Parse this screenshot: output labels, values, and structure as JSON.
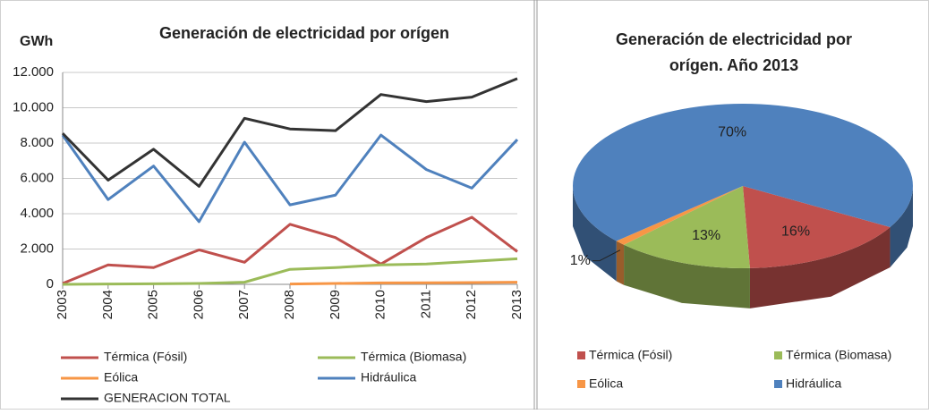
{
  "chart_data": [
    {
      "type": "line",
      "title": "Generación de electricidad por orígen",
      "y_label": "GWh",
      "categories": [
        "2003",
        "2004",
        "2005",
        "2006",
        "2007",
        "2008",
        "2009",
        "2010",
        "2011",
        "2012",
        "2013"
      ],
      "series": [
        {
          "name": "Térmica (Fósil)",
          "color": "#c0504d",
          "values": [
            50,
            1100,
            950,
            1950,
            1250,
            3400,
            2650,
            1150,
            2650,
            3800,
            1850
          ]
        },
        {
          "name": "Térmica (Biomasa)",
          "color": "#9bbb59",
          "values": [
            0,
            20,
            30,
            50,
            120,
            850,
            950,
            1100,
            1150,
            1300,
            1450
          ]
        },
        {
          "name": "Eólica",
          "color": "#f79646",
          "values": [
            null,
            null,
            null,
            null,
            null,
            20,
            50,
            80,
            90,
            100,
            120
          ]
        },
        {
          "name": "Hidráulica",
          "color": "#4f81bd",
          "values": [
            8450,
            4800,
            6700,
            3550,
            8050,
            4500,
            5050,
            8450,
            6500,
            5450,
            8200
          ]
        },
        {
          "name": "GENERACION TOTAL",
          "color": "#333333",
          "values": [
            8550,
            5900,
            7650,
            5550,
            9400,
            8800,
            8700,
            10750,
            10350,
            10600,
            11650
          ]
        }
      ],
      "ylim": [
        0,
        12000
      ],
      "yticks": [
        0,
        {
          "value": 2000,
          "label": "2.000"
        },
        {
          "value": 4000,
          "label": "4.000"
        },
        {
          "value": 6000,
          "label": "6.000"
        },
        {
          "value": 8000,
          "label": "8.000"
        },
        {
          "value": 10000,
          "label": "10.000"
        },
        {
          "value": 12000,
          "label": "12.000"
        }
      ],
      "grid": true,
      "legend": "bottom"
    },
    {
      "type": "pie",
      "title": [
        "Generación de electricidad por",
        "orígen. Año 2013"
      ],
      "categories": [
        "Térmica (Fósil)",
        "Térmica (Biomasa)",
        "Eólica",
        "Hidráulica"
      ],
      "values": [
        16,
        13,
        1,
        70
      ],
      "value_labels": [
        "16%",
        "13%",
        "1%",
        "70%"
      ],
      "colors": [
        "#c0504d",
        "#9bbb59",
        "#f79646",
        "#4f81bd"
      ],
      "legend": "bottom"
    }
  ]
}
